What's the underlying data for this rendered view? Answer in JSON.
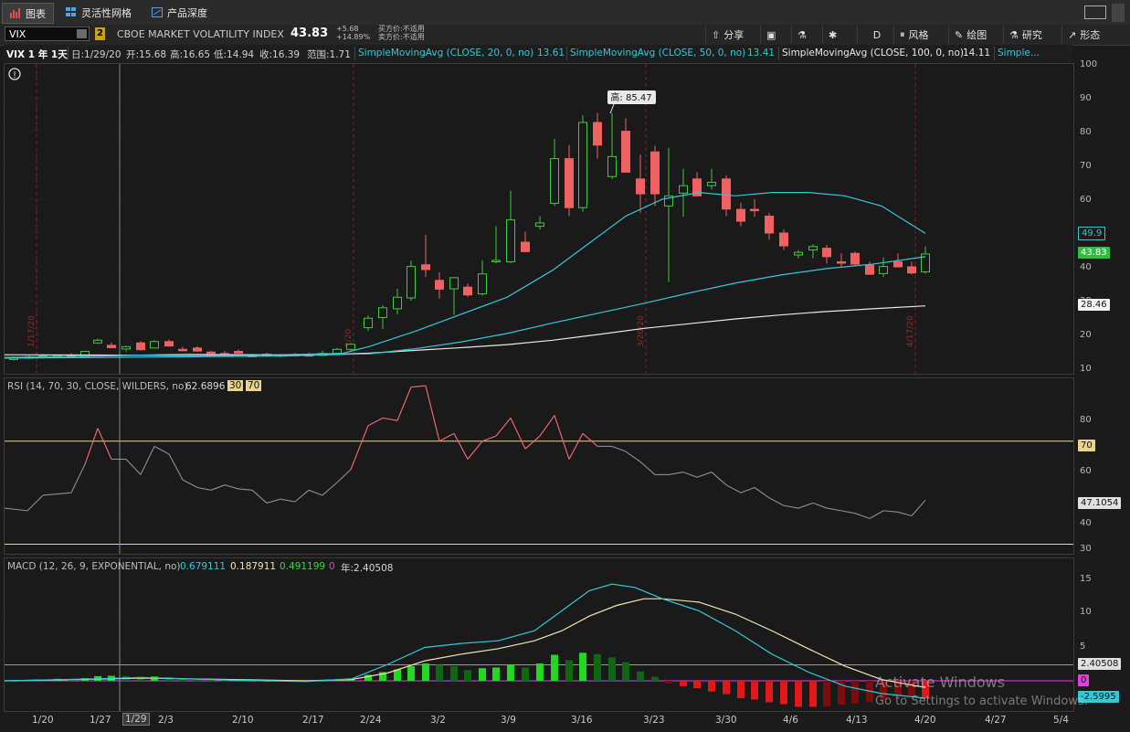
{
  "tabs": [
    {
      "label": "图表",
      "icon": "bar-chart-icon",
      "active": true
    },
    {
      "label": "灵活性网格",
      "icon": "grid-icon",
      "active": false
    },
    {
      "label": "产品深度",
      "icon": "depth-icon",
      "active": false
    }
  ],
  "toolbar": {
    "symbol": "VIX",
    "link_badge": "2",
    "symbol_name": "CBOE MARKET VOLATILITY INDEX",
    "last_price": "43.83",
    "change": "+5.68",
    "change_pct": "+14.89%",
    "bid": "买方价:不适用",
    "ask": "卖方价:不适用",
    "share": "分享",
    "period": "D",
    "style": "风格",
    "draw": "绘图",
    "research": "研究",
    "patterns": "形态"
  },
  "status": {
    "title": "VIX 1 年 1天",
    "date": "日:1/29/20",
    "open": "开:15.68",
    "high": "高:16.65",
    "low": "低:14.94",
    "close": "收:16.39",
    "range": "范围:1.71",
    "sma20_label": "SimpleMovingAvg (CLOSE, 20, 0, no)",
    "sma20_val": "13.61",
    "sma50_label": "SimpleMovingAvg (CLOSE, 50, 0, no)",
    "sma50_val": "13.41",
    "sma100_label": "SimpleMovingAvg (CLOSE, 100, 0, no)",
    "sma100_val": "14.11",
    "more": "Simple..."
  },
  "price_panel": {
    "ticks": [
      "100",
      "90",
      "80",
      "70",
      "60",
      "50",
      "40",
      "30",
      "20",
      "10"
    ],
    "high_callout": "高: 85.47",
    "label_sma_top": "49.9",
    "label_last": "43.83",
    "label_sma100": "28.46",
    "event_labels": [
      "1/17/20",
      "2/20",
      "3/20/20",
      "4/17/20"
    ],
    "colors": {
      "up": "#3ec83e",
      "down": "#f06262",
      "sma20": "#31c9d8",
      "sma50": "#31c9d8",
      "sma100": "#e8e8e8"
    }
  },
  "rsi_panel": {
    "legend": "RSI (14, 70, 30, CLOSE, WILDERS, no)",
    "value": "62.6896",
    "os": "30",
    "ob": "70",
    "ticks": [
      "80",
      "70",
      "60",
      "50",
      "40",
      "30"
    ],
    "label_ob": "70",
    "label_val": "47.1054"
  },
  "macd_panel": {
    "legend": "MACD (12, 26, 9, EXPONENTIAL, no)",
    "value": "0.679111",
    "avg": "0.187911",
    "diff": "0.491199",
    "zero": "0",
    "year": "年:2.40508",
    "ticks": [
      "15",
      "10",
      "5"
    ],
    "label_high": "2.40508",
    "label_zero": "0",
    "label_low": "-2.5995"
  },
  "dates": [
    "1/20",
    "1/27",
    "1/29",
    "2/3",
    "2/10",
    "2/17",
    "2/24",
    "3/2",
    "3/9",
    "3/16",
    "3/23",
    "3/30",
    "4/6",
    "4/13",
    "4/20",
    "4/27",
    "5/4"
  ],
  "watermark": {
    "line1": "Activate Windows",
    "line2": "Go to Settings to activate Windows."
  }
}
